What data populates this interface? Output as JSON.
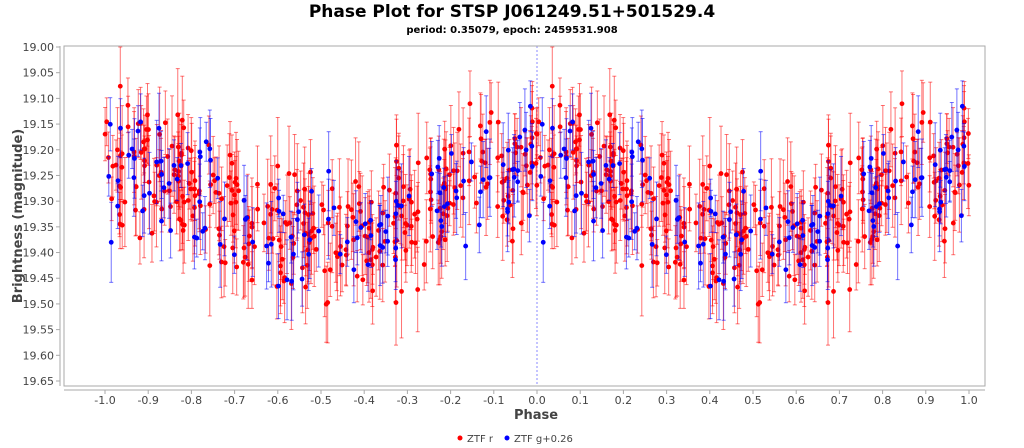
{
  "chart_data": {
    "type": "scatter",
    "title": "Phase Plot for STSP J061249.51+501529.4",
    "subtitle": "period: 0.35079, epoch: 2459531.908",
    "xlabel": "Phase",
    "ylabel": "Brightness (magnitude)",
    "xlim": [
      -1.08,
      1.04
    ],
    "ylim": [
      19.65,
      19.0
    ],
    "y_inverted": true,
    "xticks": [
      "-1.0",
      "-0.9",
      "-0.8",
      "-0.7",
      "-0.6",
      "-0.5",
      "-0.4",
      "-0.3",
      "-0.2",
      "-0.1",
      "0.0",
      "0.1",
      "0.2",
      "0.3",
      "0.4",
      "0.5",
      "0.6",
      "0.7",
      "0.8",
      "0.9",
      "1.0"
    ],
    "yticks": [
      "19.00",
      "19.05",
      "19.10",
      "19.15",
      "19.20",
      "19.25",
      "19.30",
      "19.35",
      "19.40",
      "19.45",
      "19.50",
      "19.55",
      "19.60",
      "19.65"
    ],
    "marker_line_x": 0.0,
    "legend_position": "bottom-center",
    "series": [
      {
        "name": "ZTF r",
        "color": "#ff0000",
        "count": 700,
        "mean_mag": 19.3,
        "amplitude": 0.08,
        "scatter": 0.06,
        "typical_error": 0.07
      },
      {
        "name": "ZTF g+0.26",
        "color": "#0000ff",
        "count": 260,
        "mean_mag": 19.3,
        "amplitude": 0.07,
        "scatter": 0.06,
        "typical_error": 0.06
      }
    ]
  }
}
